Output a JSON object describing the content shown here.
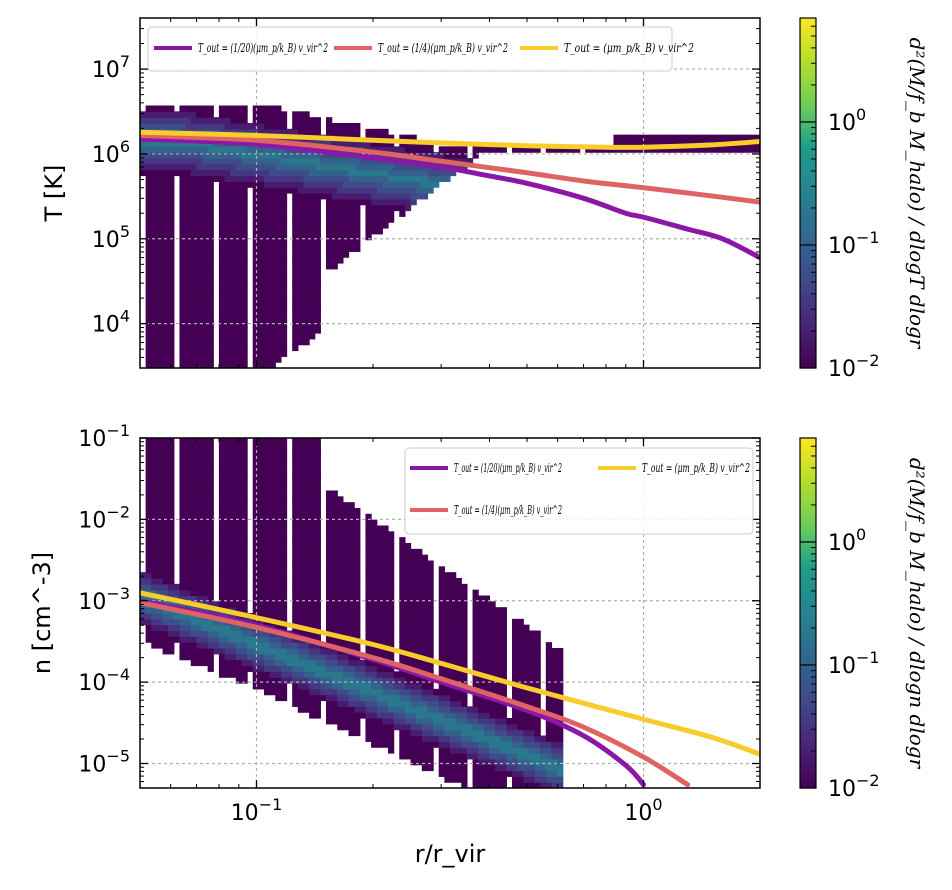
{
  "chart_data": [
    {
      "type": "heatmap",
      "panel": "top",
      "xlabel": "",
      "ylabel": "T [K]",
      "xscale": "log",
      "yscale": "log",
      "xlim": [
        0.05,
        2.0
      ],
      "ylim": [
        3000,
        40000000
      ],
      "xticks": [
        {
          "value": 0.1,
          "label": "10^-1"
        },
        {
          "value": 1.0,
          "label": "10^0"
        }
      ],
      "yticks": [
        {
          "value": 10000,
          "label": "10^4"
        },
        {
          "value": 100000,
          "label": "10^5"
        },
        {
          "value": 1000000,
          "label": "10^6"
        },
        {
          "value": 10000000,
          "label": "10^7"
        }
      ],
      "grid": true,
      "legend_placement": "top-left",
      "legend_columns": 3,
      "series": [
        {
          "name": "T_out = (1/20)(μm_p/k_B) v_vir^2",
          "color": "#8b17a6",
          "x": [
            0.05,
            0.1,
            0.2,
            0.3,
            0.4,
            0.5,
            0.7,
            0.9,
            1.0,
            1.3,
            1.6,
            2.0
          ],
          "y": [
            1500000,
            1300000,
            900000,
            700000,
            550000,
            450000,
            300000,
            200000,
            180000,
            130000,
            100000,
            60000
          ]
        },
        {
          "name": "T_out = (1/4)(μm_p/k_B) v_vir^2",
          "color": "#e06363",
          "x": [
            0.05,
            0.1,
            0.2,
            0.3,
            0.5,
            0.7,
            1.0,
            1.5,
            2.0
          ],
          "y": [
            1650000,
            1450000,
            1050000,
            820000,
            600000,
            480000,
            400000,
            320000,
            270000
          ]
        },
        {
          "name": "T_out = (μm_p/k_B) v_vir^2",
          "color": "#f7cc2b",
          "x": [
            0.05,
            0.1,
            0.2,
            0.3,
            0.5,
            0.8,
            1.0,
            1.5,
            2.0
          ],
          "y": [
            1800000,
            1650000,
            1450000,
            1350000,
            1250000,
            1200000,
            1200000,
            1280000,
            1400000
          ]
        }
      ],
      "colorbar": {
        "label": "d²(M/f_b M_halo) / dlogT dlogr",
        "scale": "log",
        "range": [
          0.01,
          7
        ],
        "ticks": [
          {
            "value": 0.01,
            "label": "10^-2"
          },
          {
            "value": 0.1,
            "label": "10^-1"
          },
          {
            "value": 1,
            "label": "10^0"
          }
        ]
      }
    },
    {
      "type": "heatmap",
      "panel": "bottom",
      "xlabel": "r/r_vir",
      "ylabel": "n [cm^-3]",
      "xscale": "log",
      "yscale": "log",
      "xlim": [
        0.05,
        2.0
      ],
      "ylim": [
        5e-06,
        0.1
      ],
      "xticks": [
        {
          "value": 0.1,
          "label": "10^-1"
        },
        {
          "value": 1.0,
          "label": "10^0"
        }
      ],
      "yticks": [
        {
          "value": 1e-05,
          "label": "10^-5"
        },
        {
          "value": 0.0001,
          "label": "10^-4"
        },
        {
          "value": 0.001,
          "label": "10^-3"
        },
        {
          "value": 0.01,
          "label": "10^-2"
        },
        {
          "value": 0.1,
          "label": "10^-1"
        }
      ],
      "grid": true,
      "legend_placement": "top-right",
      "legend_columns": 2,
      "series": [
        {
          "name": "T_out = (1/20)(μm_p/k_B) v_vir^2",
          "color": "#8b17a6",
          "x": [
            0.05,
            0.1,
            0.2,
            0.3,
            0.5,
            0.7,
            0.9,
            1.0
          ],
          "y": [
            0.001,
            0.0005,
            0.00019,
            0.0001,
            4.5e-05,
            2.2e-05,
            9.5e-06,
            5.5e-06
          ]
        },
        {
          "name": "T_out = (1/4)(μm_p/k_B) v_vir^2",
          "color": "#e06363",
          "x": [
            0.05,
            0.1,
            0.2,
            0.3,
            0.5,
            0.7,
            1.0,
            1.3
          ],
          "y": [
            0.00095,
            0.00047,
            0.0002,
            0.00011,
            5e-05,
            2.8e-05,
            1.2e-05,
            5.5e-06
          ]
        },
        {
          "name": "T_out = (μm_p/k_B) v_vir^2",
          "color": "#f7cc2b",
          "x": [
            0.05,
            0.1,
            0.2,
            0.3,
            0.5,
            1.0,
            1.5,
            2.0
          ],
          "y": [
            0.00125,
            0.00062,
            0.00029,
            0.00017,
            8.5e-05,
            3.5e-05,
            2.1e-05,
            1.3e-05
          ]
        }
      ],
      "colorbar": {
        "label": "d²(M/f_b M_halo) / dlogn dlogr",
        "scale": "log",
        "range": [
          0.01,
          7
        ],
        "ticks": [
          {
            "value": 0.01,
            "label": "10^-2"
          },
          {
            "value": 0.1,
            "label": "10^-1"
          },
          {
            "value": 1,
            "label": "10^0"
          }
        ]
      }
    }
  ]
}
